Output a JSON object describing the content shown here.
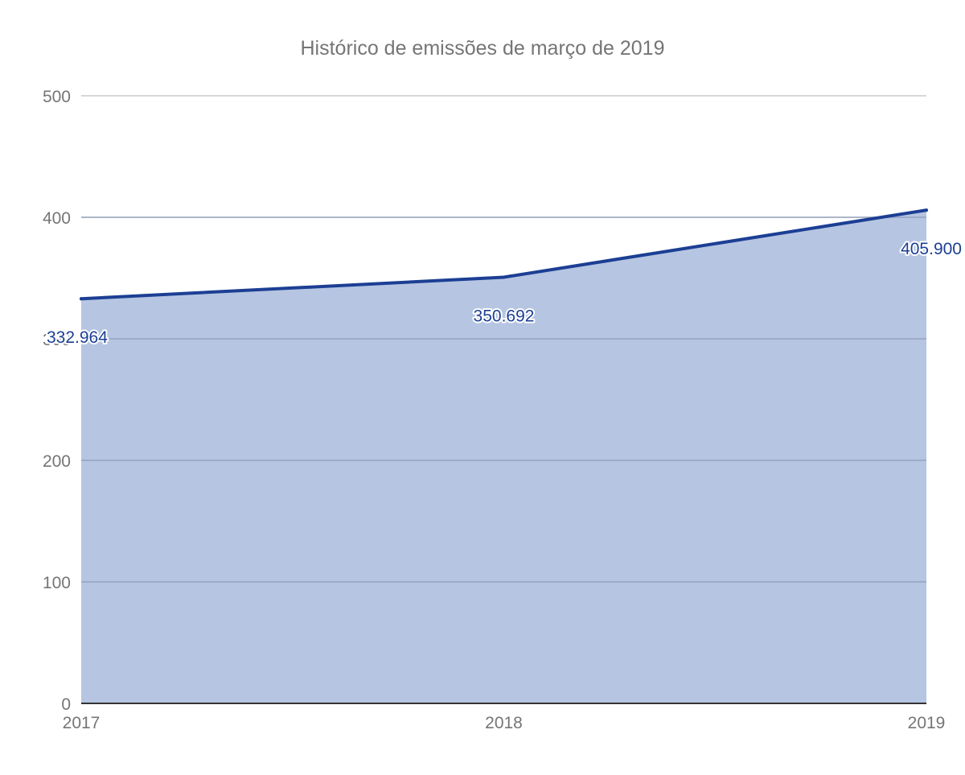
{
  "chart_data": {
    "type": "area",
    "title": "Histórico de emissões de março de 2019",
    "xlabel": "",
    "ylabel": "",
    "categories": [
      "2017",
      "2018",
      "2019"
    ],
    "series": [
      {
        "values": [
          332.964,
          350.692,
          405.9
        ],
        "labels": [
          "332.964",
          "350.692",
          "405.900"
        ],
        "color": "#1c3f94",
        "fill_color": "#b6c5e1"
      }
    ],
    "ylim": [
      0,
      500
    ],
    "yticks": [
      0,
      100,
      200,
      300,
      400,
      500
    ],
    "ytick_labels": [
      "0",
      "100",
      "200",
      "300",
      "400",
      "500"
    ],
    "grid": true,
    "legend": "none"
  }
}
